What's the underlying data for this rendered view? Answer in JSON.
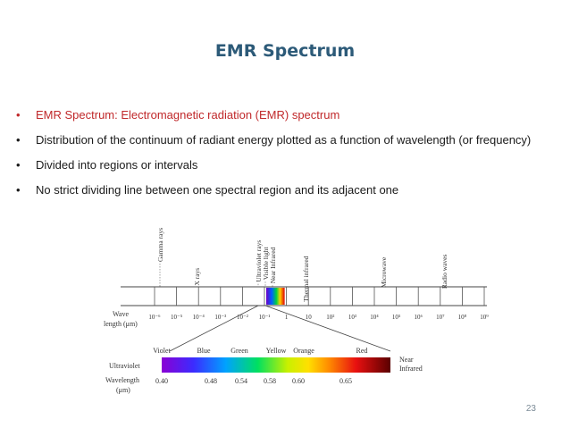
{
  "slide": {
    "title": "EMR Spectrum",
    "page_number": "23"
  },
  "bullets": [
    {
      "text": "EMR Spectrum: Electromagnetic radiation (EMR) spectrum",
      "color": "#c0282a"
    },
    {
      "text": "Distribution of the continuum of radiant energy plotted as a function of wavelength (or frequency)",
      "color": "#1a1a1a"
    },
    {
      "text": "Divided into regions or intervals",
      "color": "#1a1a1a"
    },
    {
      "text": "No strict dividing line between one spectral region and its adjacent one",
      "color": "#1a1a1a"
    }
  ],
  "diagram": {
    "region_labels": [
      "Gamma rays",
      "X rays",
      "Ultraviolet rays",
      "Visible light",
      "Near Infrared",
      "Thermal infrared",
      "Microwave",
      "Radio waves"
    ],
    "axis_label_line1": "Wave",
    "axis_label_line2": "length (μm)",
    "ticks": [
      "10⁻⁶",
      "10⁻⁵",
      "10⁻⁴",
      "10⁻³",
      "10⁻²",
      "10⁻¹",
      "1",
      "10",
      "10²",
      "10³",
      "10⁴",
      "10⁵",
      "10⁶",
      "10⁷",
      "10⁸",
      "10⁹"
    ],
    "color_names": [
      "Violet",
      "Blue",
      "Green",
      "Yellow",
      "Orange",
      "Red"
    ],
    "left_label": "Ultraviolet",
    "right_label_line1": "Near",
    "right_label_line2": "Infrared",
    "wavelength_label_line1": "Wavelength",
    "wavelength_label_line2": "(μm)",
    "wavelength_values": [
      "0.40",
      "0.48",
      "0.54",
      "0.58",
      "0.60",
      "0.65"
    ]
  }
}
